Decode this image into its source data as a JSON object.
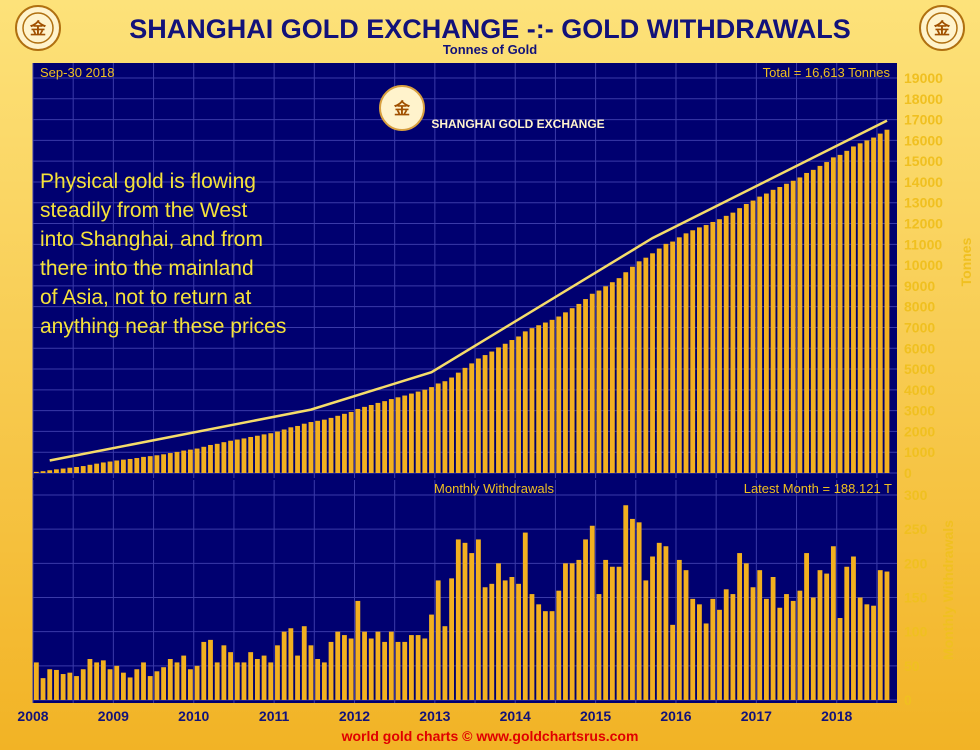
{
  "header": {
    "title": "SHANGHAI GOLD EXCHANGE -:- GOLD WITHDRAWALS",
    "subtitle": "Tonnes of Gold",
    "footer": "world gold charts © www.goldchartsrus.com",
    "logo_text": "SHANGHAI GOLD EXCHANGE",
    "seal_text": "金"
  },
  "annotation": [
    "Physical gold is flowing",
    "steadily from the West",
    "into Shanghai, and from",
    "there into the mainland",
    "of Asia, not to return at",
    "anything near these prices"
  ],
  "colors": {
    "background": "#000070",
    "grid": "#3a3aa8",
    "bar": "#f2b020",
    "line": "#f5dc6a",
    "text": "#f0c020",
    "frame": "#f6c23a",
    "title": "#12127a",
    "footer": "#e00000"
  },
  "chart_data": [
    {
      "type": "bar",
      "name": "cumulative",
      "date_label": "Sep-30  2018",
      "total_label": "Total = 16,613 Tonnes",
      "ylabel": "Tonnes",
      "ylim": [
        0,
        19000
      ],
      "yticks": [
        0,
        1000,
        2000,
        3000,
        4000,
        5000,
        6000,
        7000,
        8000,
        9000,
        10000,
        11000,
        12000,
        13000,
        14000,
        15000,
        16000,
        17000,
        18000,
        19000
      ],
      "x_start": "2008-01",
      "x_end": "2018-09",
      "series": [
        {
          "kind": "bars",
          "values": []
        },
        {
          "kind": "line",
          "points": [
            [
              "2008-03",
              600
            ],
            [
              "2011-06",
              3050
            ],
            [
              "2012-12",
              4850
            ],
            [
              "2015-09",
              11300
            ],
            [
              "2018-08",
              16950
            ]
          ]
        }
      ]
    },
    {
      "type": "bar",
      "name": "monthly",
      "title": "Monthly Withdrawals",
      "latest_label": "Latest Month = 188.121 T",
      "ylabel": "Monthly Withdrawals",
      "ylim": [
        0,
        300
      ],
      "yticks": [
        0,
        50,
        100,
        150,
        200,
        250,
        300
      ],
      "x_start": "2008-01",
      "x_end": "2018-09",
      "xticks": [
        "2008",
        "2009",
        "2010",
        "2011",
        "2012",
        "2013",
        "2014",
        "2015",
        "2016",
        "2017",
        "2018"
      ],
      "values": [
        55,
        32,
        45,
        44,
        38,
        40,
        35,
        45,
        60,
        55,
        58,
        45,
        50,
        40,
        33,
        45,
        55,
        35,
        42,
        48,
        60,
        55,
        65,
        45,
        50,
        85,
        88,
        55,
        80,
        70,
        55,
        55,
        70,
        60,
        65,
        55,
        80,
        100,
        105,
        65,
        108,
        80,
        60,
        55,
        85,
        100,
        95,
        90,
        145,
        100,
        90,
        100,
        85,
        100,
        85,
        85,
        95,
        95,
        90,
        125,
        175,
        108,
        178,
        235,
        230,
        215,
        235,
        165,
        170,
        200,
        175,
        180,
        170,
        245,
        155,
        140,
        130,
        130,
        160,
        200,
        200,
        205,
        235,
        255,
        155,
        205,
        195,
        195,
        285,
        265,
        260,
        175,
        210,
        230,
        225,
        110,
        205,
        190,
        148,
        140,
        112,
        148,
        132,
        162,
        155,
        215,
        200,
        165,
        190,
        148,
        180,
        135,
        155,
        145,
        160,
        215,
        150,
        190,
        185,
        225,
        120,
        195,
        210,
        150,
        140,
        138,
        190,
        188
      ]
    }
  ]
}
